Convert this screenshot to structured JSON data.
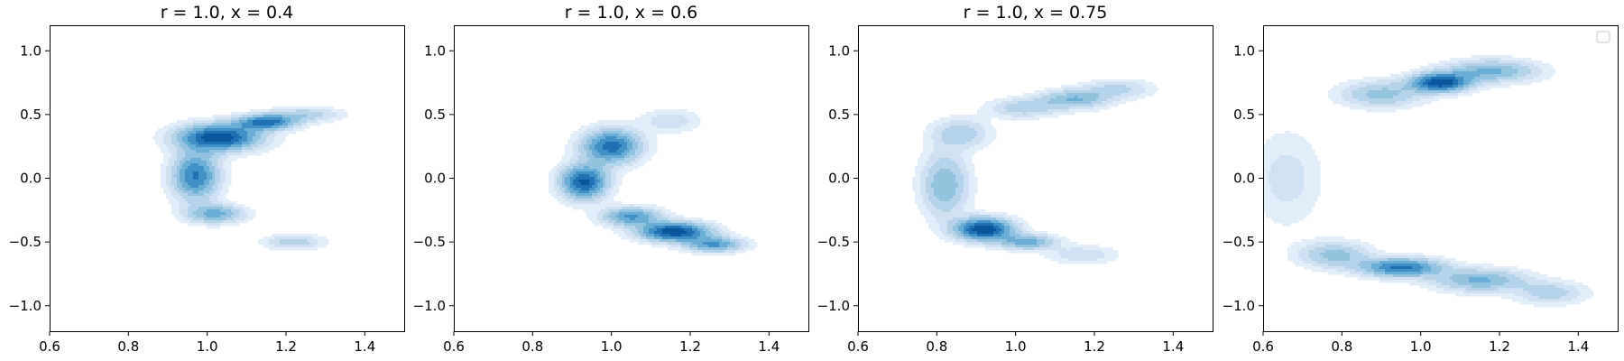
{
  "chart_data": [
    {
      "type": "contour",
      "title": "r = 1.0, x = 0.4",
      "xlabel": "",
      "ylabel": "",
      "xlim": [
        0.6,
        1.5
      ],
      "ylim": [
        -1.2,
        1.2
      ],
      "xticks": [
        "0.6",
        "0.8",
        "1.0",
        "1.2",
        "1.4"
      ],
      "yticks": [
        "−1.0",
        "−0.5",
        "0.0",
        "0.5",
        "1.0"
      ],
      "colormap": "Blues",
      "density_modes": [
        {
          "x": 1.03,
          "y": 0.32,
          "sx": 0.07,
          "sy": 0.07,
          "w": 1.0
        },
        {
          "x": 1.15,
          "y": 0.44,
          "sx": 0.05,
          "sy": 0.04,
          "w": 0.8
        },
        {
          "x": 0.97,
          "y": 0.02,
          "sx": 0.04,
          "sy": 0.13,
          "w": 0.75
        },
        {
          "x": 1.02,
          "y": -0.28,
          "sx": 0.05,
          "sy": 0.05,
          "w": 0.5
        },
        {
          "x": 1.22,
          "y": -0.5,
          "sx": 0.05,
          "sy": 0.04,
          "w": 0.3
        },
        {
          "x": 1.25,
          "y": 0.5,
          "sx": 0.06,
          "sy": 0.04,
          "w": 0.3
        }
      ]
    },
    {
      "type": "contour",
      "title": "r = 1.0, x = 0.6",
      "xlabel": "",
      "ylabel": "",
      "xlim": [
        0.6,
        1.5
      ],
      "ylim": [
        -1.2,
        1.2
      ],
      "xticks": [
        "0.6",
        "0.8",
        "1.0",
        "1.2",
        "1.4"
      ],
      "yticks": [
        "−1.0",
        "−0.5",
        "0.0",
        "0.5",
        "1.0"
      ],
      "colormap": "Blues",
      "density_modes": [
        {
          "x": 0.93,
          "y": -0.03,
          "sx": 0.04,
          "sy": 0.09,
          "w": 0.9
        },
        {
          "x": 1.0,
          "y": 0.25,
          "sx": 0.05,
          "sy": 0.09,
          "w": 0.8
        },
        {
          "x": 1.16,
          "y": -0.42,
          "sx": 0.06,
          "sy": 0.05,
          "w": 1.0
        },
        {
          "x": 1.05,
          "y": -0.3,
          "sx": 0.05,
          "sy": 0.05,
          "w": 0.6
        },
        {
          "x": 1.26,
          "y": -0.52,
          "sx": 0.05,
          "sy": 0.04,
          "w": 0.6
        },
        {
          "x": 1.15,
          "y": 0.45,
          "sx": 0.05,
          "sy": 0.06,
          "w": 0.2
        }
      ]
    },
    {
      "type": "contour",
      "title": "r = 1.0, x = 0.75",
      "xlabel": "",
      "ylabel": "",
      "xlim": [
        0.6,
        1.5
      ],
      "ylim": [
        -1.2,
        1.2
      ],
      "xticks": [
        "0.6",
        "0.8",
        "1.0",
        "1.2",
        "1.4"
      ],
      "yticks": [
        "−1.0",
        "−0.5",
        "0.0",
        "0.5",
        "1.0"
      ],
      "colormap": "Blues",
      "density_modes": [
        {
          "x": 0.92,
          "y": -0.4,
          "sx": 0.05,
          "sy": 0.06,
          "w": 1.0
        },
        {
          "x": 1.03,
          "y": -0.5,
          "sx": 0.05,
          "sy": 0.04,
          "w": 0.5
        },
        {
          "x": 0.82,
          "y": -0.05,
          "sx": 0.04,
          "sy": 0.17,
          "w": 0.45
        },
        {
          "x": 0.86,
          "y": 0.35,
          "sx": 0.05,
          "sy": 0.08,
          "w": 0.3
        },
        {
          "x": 1.15,
          "y": 0.62,
          "sx": 0.06,
          "sy": 0.05,
          "w": 0.45
        },
        {
          "x": 1.02,
          "y": 0.55,
          "sx": 0.06,
          "sy": 0.05,
          "w": 0.3
        },
        {
          "x": 1.26,
          "y": 0.7,
          "sx": 0.06,
          "sy": 0.05,
          "w": 0.25
        },
        {
          "x": 1.17,
          "y": -0.6,
          "sx": 0.06,
          "sy": 0.05,
          "w": 0.2
        }
      ]
    },
    {
      "type": "contour",
      "title": "",
      "xlabel": "",
      "ylabel": "",
      "xlim": [
        0.6,
        1.5
      ],
      "ylim": [
        -1.2,
        1.2
      ],
      "xticks": [
        "0.6",
        "0.8",
        "1.0",
        "1.2",
        "1.4"
      ],
      "yticks": [
        "−1.0",
        "−0.5",
        "0.0",
        "0.5",
        "1.0"
      ],
      "colormap": "Blues",
      "legend": {
        "placement": "upper right",
        "entries": []
      },
      "density_modes": [
        {
          "x": 1.05,
          "y": 0.75,
          "sx": 0.05,
          "sy": 0.05,
          "w": 1.0
        },
        {
          "x": 1.18,
          "y": 0.84,
          "sx": 0.08,
          "sy": 0.06,
          "w": 0.5
        },
        {
          "x": 0.9,
          "y": 0.66,
          "sx": 0.07,
          "sy": 0.07,
          "w": 0.4
        },
        {
          "x": 0.95,
          "y": -0.7,
          "sx": 0.07,
          "sy": 0.05,
          "w": 0.8
        },
        {
          "x": 1.15,
          "y": -0.8,
          "sx": 0.08,
          "sy": 0.06,
          "w": 0.5
        },
        {
          "x": 0.78,
          "y": -0.6,
          "sx": 0.06,
          "sy": 0.07,
          "w": 0.4
        },
        {
          "x": 1.33,
          "y": -0.9,
          "sx": 0.06,
          "sy": 0.06,
          "w": 0.3
        },
        {
          "x": 0.66,
          "y": 0.0,
          "sx": 0.06,
          "sy": 0.25,
          "w": 0.18
        }
      ]
    }
  ]
}
